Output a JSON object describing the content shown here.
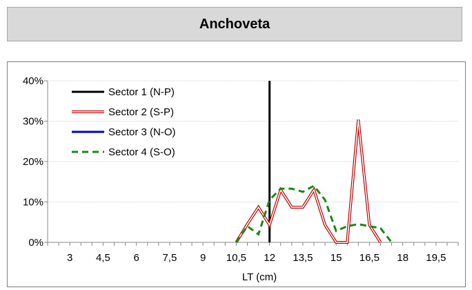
{
  "header": {
    "title": "Anchoveta"
  },
  "chart_data": {
    "type": "line",
    "title": "",
    "xlabel": "LT (cm)",
    "ylabel": "",
    "xlim": [
      2,
      20.5
    ],
    "ylim": [
      0,
      0.4
    ],
    "x_ticks": [
      3,
      4.5,
      6,
      7.5,
      9,
      10.5,
      12,
      13.5,
      15,
      16.5,
      18,
      19.5
    ],
    "x_tick_labels": [
      "3",
      "4,5",
      "6",
      "7,5",
      "9",
      "10,5",
      "12",
      "13,5",
      "15",
      "16,5",
      "18",
      "19,5"
    ],
    "y_ticks": [
      0,
      0.1,
      0.2,
      0.3,
      0.4
    ],
    "y_tick_labels": [
      "0%",
      "10%",
      "20%",
      "30%",
      "40%"
    ],
    "grid": "horizontal",
    "legend": "top-left",
    "series": [
      {
        "name": "Sector 1 (N-P)",
        "color": "#000000",
        "style": "solid",
        "x": [
          12,
          12
        ],
        "y": [
          0,
          0.4
        ]
      },
      {
        "name": "Sector 2 (S-P)",
        "color": "#c00000",
        "style": "double",
        "x": [
          10.5,
          11,
          11.5,
          12,
          12.5,
          13,
          13.5,
          14,
          14.5,
          15,
          15.5,
          16,
          16.5,
          17
        ],
        "y": [
          0,
          0.045,
          0.087,
          0.043,
          0.13,
          0.087,
          0.087,
          0.13,
          0.043,
          0,
          0,
          0.304,
          0.043,
          0
        ]
      },
      {
        "name": "Sector 3 (N-O)",
        "color": "#0000cc",
        "style": "solid",
        "x": [],
        "y": []
      },
      {
        "name": "Sector 4 (S-O)",
        "color": "#138a13",
        "style": "dashed",
        "x": [
          10.5,
          11,
          11.5,
          12,
          12.5,
          13,
          13.5,
          14,
          14.5,
          15,
          15.5,
          16,
          16.5,
          17,
          17.5
        ],
        "y": [
          0,
          0.04,
          0.02,
          0.105,
          0.133,
          0.133,
          0.125,
          0.14,
          0.105,
          0.028,
          0.04,
          0.045,
          0.04,
          0.035,
          0
        ]
      }
    ]
  }
}
